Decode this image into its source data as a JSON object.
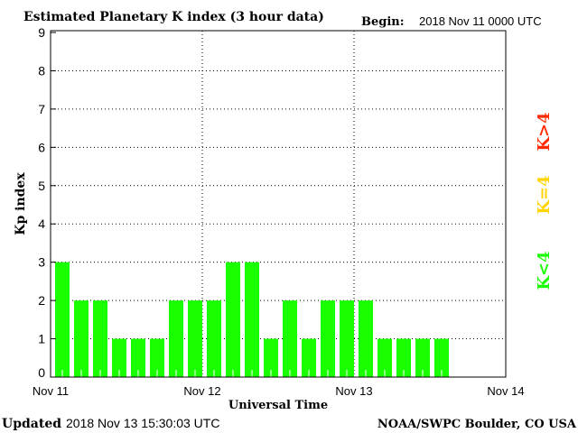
{
  "chart_data": {
    "type": "bar",
    "title": "Estimated Planetary K index (3 hour data)",
    "begin_label": "Begin:",
    "begin_value": "2018 Nov 11 0000 UTC",
    "xlabel": "Universal Time",
    "ylabel": "Kp index",
    "ylim": [
      0,
      9
    ],
    "y_ticks": [
      "0",
      "1",
      "2",
      "3",
      "4",
      "5",
      "6",
      "7",
      "8",
      "9"
    ],
    "x_ticks": [
      "Nov 11",
      "Nov 12",
      "Nov 13",
      "Nov 14"
    ],
    "interval_hours": 3,
    "values": [
      3,
      2,
      2,
      1,
      1,
      1,
      2,
      2,
      2,
      3,
      3,
      1,
      2,
      1,
      2,
      2,
      2,
      1,
      1,
      1,
      1
    ],
    "bar_color": "#1aff00",
    "grid": true,
    "legend": [
      {
        "label": "K<4",
        "color": "#1aff00"
      },
      {
        "label": "K=4",
        "color": "#ffd400"
      },
      {
        "label": "K>4",
        "color": "#ff2a00"
      }
    ]
  },
  "footer": {
    "updated_label": "Updated",
    "updated_value": "2018 Nov 13 15:30:03 UTC",
    "source": "NOAA/SWPC Boulder, CO USA"
  }
}
